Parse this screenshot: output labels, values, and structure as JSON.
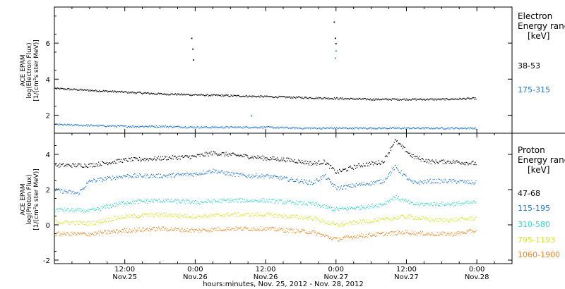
{
  "x_axis": {
    "label": "hours:minutes, Nov. 25, 2012 - Nov. 28, 2012",
    "ticks": [
      {
        "hour": 12,
        "time": "12:00",
        "date": "Nov.25"
      },
      {
        "hour": 24,
        "time": "0:00",
        "date": "Nov.26"
      },
      {
        "hour": 36,
        "time": "12:00",
        "date": "Nov.26"
      },
      {
        "hour": 48,
        "time": "0:00",
        "date": "Nov.27"
      },
      {
        "hour": 60,
        "time": "12:00",
        "date": "Nov.27"
      },
      {
        "hour": 72,
        "time": "0:00",
        "date": "Nov.28"
      }
    ]
  },
  "electron_panel": {
    "ylabel_1": "ACE EPAM",
    "ylabel_2": "log(Electron Flux)",
    "ylabel_3": "[1/(cm²s ster MeV)]",
    "legend_title_1": "Electron",
    "legend_title_2": "Energy ranges",
    "legend_unit": "[keV]",
    "yticks": [
      2,
      4,
      6
    ]
  },
  "proton_panel": {
    "ylabel_1": "ACE EPAM",
    "ylabel_2": "log(Proton Flux)",
    "ylabel_3": "[1/(cm²s ster MeV)]",
    "legend_title_1": "Proton",
    "legend_title_2": "Energy ranges",
    "legend_unit": "[keV]",
    "yticks": [
      -2,
      0,
      2,
      4
    ]
  },
  "chart_data": [
    {
      "type": "scatter",
      "title": "",
      "ylabel": "log(Electron Flux)",
      "xlim_hours": [
        0,
        78
      ],
      "ylim": [
        1.0,
        8.0
      ],
      "series": [
        {
          "name": "38-53",
          "color": "#000000",
          "x": [
            0,
            6,
            12,
            18,
            24,
            30,
            36,
            42,
            48,
            54,
            60,
            66,
            72
          ],
          "y": [
            3.5,
            3.4,
            3.3,
            3.2,
            3.15,
            3.1,
            3.05,
            3.0,
            2.95,
            2.9,
            2.9,
            2.9,
            2.95
          ],
          "spikes": [
            [
              23.3,
              6.3
            ],
            [
              23.5,
              5.7
            ],
            [
              23.6,
              5.1
            ],
            [
              47.6,
              7.2
            ],
            [
              47.8,
              6.3
            ],
            [
              47.9,
              6.0
            ]
          ]
        },
        {
          "name": "175-315",
          "color": "#1f77d0",
          "x": [
            0,
            6,
            12,
            18,
            24,
            30,
            36,
            42,
            48,
            54,
            60,
            66,
            72
          ],
          "y": [
            1.5,
            1.45,
            1.4,
            1.4,
            1.35,
            1.35,
            1.35,
            1.3,
            1.3,
            1.3,
            1.3,
            1.3,
            1.3
          ],
          "spikes": [
            [
              33.5,
              2.0
            ],
            [
              47.8,
              5.2
            ],
            [
              47.9,
              5.6
            ]
          ]
        }
      ]
    },
    {
      "type": "scatter",
      "title": "",
      "ylabel": "log(Proton Flux)",
      "xlim_hours": [
        0,
        78
      ],
      "ylim": [
        -2.2,
        5.2
      ],
      "series": [
        {
          "name": "47-68",
          "color": "#000000",
          "x": [
            0,
            6,
            12,
            18,
            24,
            27,
            30,
            33,
            36,
            40,
            44,
            46,
            48,
            52,
            56,
            58,
            61,
            64,
            68,
            72
          ],
          "y": [
            3.4,
            3.4,
            3.7,
            3.8,
            3.9,
            4.1,
            4.0,
            3.9,
            3.8,
            3.7,
            3.5,
            3.6,
            3.0,
            3.4,
            3.6,
            4.8,
            3.9,
            3.6,
            3.6,
            3.5
          ]
        },
        {
          "name": "115-195",
          "color": "#1f77d0",
          "x": [
            0,
            4,
            6,
            12,
            18,
            24,
            27,
            30,
            33,
            36,
            40,
            44,
            46,
            48,
            52,
            56,
            58,
            61,
            64,
            68,
            72
          ],
          "y": [
            2.0,
            1.8,
            2.5,
            2.8,
            2.8,
            2.9,
            3.1,
            2.9,
            2.8,
            2.8,
            2.6,
            2.4,
            2.8,
            2.1,
            2.3,
            2.5,
            3.3,
            2.4,
            2.5,
            2.5,
            2.4
          ]
        },
        {
          "name": "310-580",
          "color": "#2fd8c8",
          "x": [
            0,
            6,
            12,
            18,
            24,
            30,
            36,
            40,
            44,
            48,
            52,
            56,
            58,
            61,
            64,
            68,
            72
          ],
          "y": [
            0.9,
            0.8,
            1.3,
            1.4,
            1.3,
            1.4,
            1.4,
            1.3,
            1.2,
            0.9,
            1.0,
            1.2,
            1.6,
            1.2,
            1.2,
            1.2,
            1.3
          ]
        },
        {
          "name": "795-1193",
          "color": "#d5e61a",
          "x": [
            0,
            6,
            12,
            18,
            24,
            30,
            36,
            40,
            44,
            48,
            52,
            56,
            60,
            64,
            68,
            72
          ],
          "y": [
            0.2,
            0.1,
            0.5,
            0.6,
            0.5,
            0.6,
            0.6,
            0.5,
            0.4,
            0.0,
            0.2,
            0.3,
            0.5,
            0.3,
            0.3,
            0.4
          ]
        },
        {
          "name": "1060-1900",
          "color": "#f0841c",
          "x": [
            0,
            6,
            12,
            18,
            24,
            30,
            36,
            40,
            44,
            48,
            52,
            56,
            60,
            64,
            68,
            72
          ],
          "y": [
            -0.5,
            -0.5,
            -0.3,
            -0.2,
            -0.3,
            -0.2,
            -0.2,
            -0.3,
            -0.4,
            -0.8,
            -0.6,
            -0.5,
            -0.4,
            -0.5,
            -0.5,
            -0.3
          ]
        }
      ]
    }
  ]
}
